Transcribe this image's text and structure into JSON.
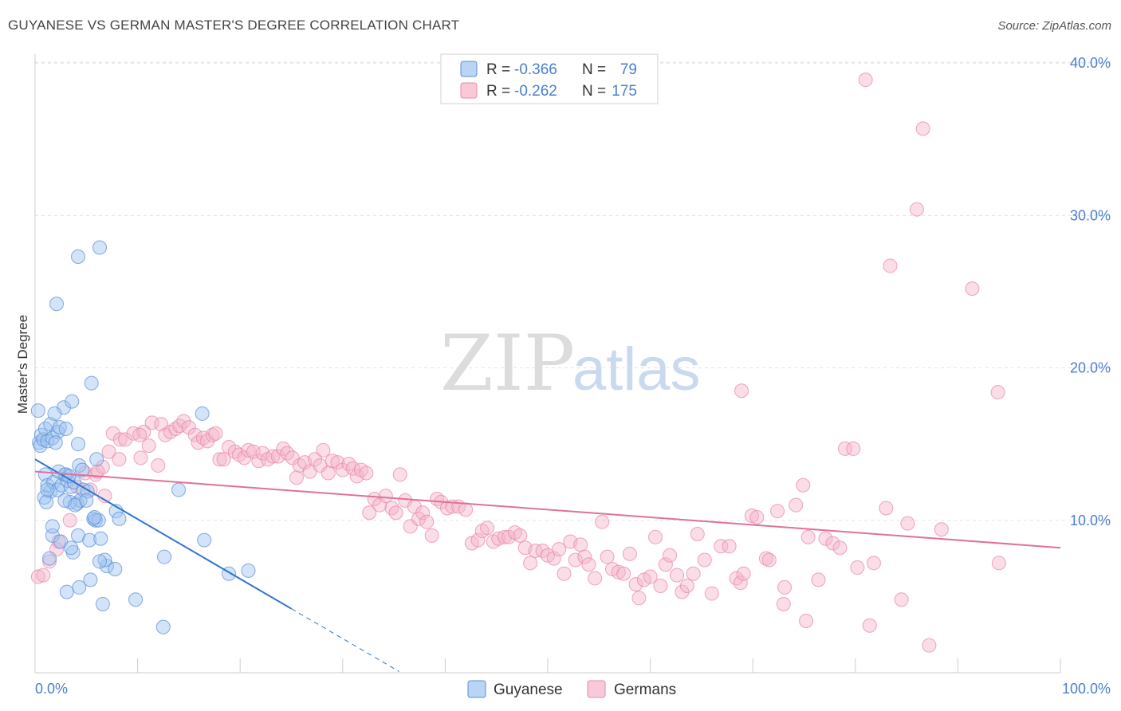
{
  "title": "GUYANESE VS GERMAN MASTER'S DEGREE CORRELATION CHART",
  "source": "Source: ZipAtlas.com",
  "watermark": {
    "zip": "ZIP",
    "atlas": "atlas"
  },
  "colors": {
    "blue_fill": "#9dc3f0",
    "blue_stroke": "#5b8fd8",
    "blue_line": "#2f73d0",
    "pink_fill": "#f5b3c8",
    "pink_stroke": "#e888a8",
    "pink_line": "#e0709a",
    "grid": "#e3e3e3",
    "tick_text": "#4a7fd0"
  },
  "legend": {
    "row1": {
      "r_label": "R = ",
      "r_value": "-0.366",
      "n_label": "N = ",
      "n_value": "79"
    },
    "row2": {
      "r_label": "R = ",
      "r_value": "-0.262",
      "n_label": "N = ",
      "n_value": "175"
    }
  },
  "chart_data": {
    "type": "scatter",
    "title": "GUYANESE VS GERMAN MASTER'S DEGREE CORRELATION CHART",
    "xlabel": "",
    "ylabel": "Master's Degree",
    "xlim": [
      0,
      100
    ],
    "ylim": [
      0,
      41
    ],
    "x_tick_labels": {
      "min": "0.0%",
      "max": "100.0%"
    },
    "y_ticks": [
      {
        "value": 10,
        "label": "10.0%"
      },
      {
        "value": 20,
        "label": "20.0%"
      },
      {
        "value": 30,
        "label": "30.0%"
      },
      {
        "value": 40,
        "label": "40.0%"
      }
    ],
    "series": [
      {
        "name": "Guyanese",
        "color": "#9dc3f0",
        "r": -0.366,
        "n": 79,
        "trend": {
          "x0": 0,
          "y0": 14.0,
          "x1": 25,
          "y1": 4.2,
          "dash_to_x": 35.5
        },
        "points": [
          [
            0.3,
            17.2
          ],
          [
            0.4,
            15.1
          ],
          [
            0.5,
            14.9
          ],
          [
            0.6,
            15.6
          ],
          [
            0.8,
            15.3
          ],
          [
            1.0,
            16.0
          ],
          [
            1.2,
            15.2
          ],
          [
            1.5,
            16.3
          ],
          [
            1.7,
            15.4
          ],
          [
            2.2,
            15.8
          ],
          [
            2.8,
            17.4
          ],
          [
            2.0,
            15.1
          ],
          [
            1.9,
            17.0
          ],
          [
            3.6,
            17.8
          ],
          [
            2.4,
            16.1
          ],
          [
            3.0,
            16.0
          ],
          [
            1.0,
            13.0
          ],
          [
            1.2,
            12.3
          ],
          [
            1.5,
            11.9
          ],
          [
            1.8,
            12.5
          ],
          [
            2.2,
            12.0
          ],
          [
            2.6,
            12.3
          ],
          [
            2.9,
            13.0
          ],
          [
            3.2,
            12.6
          ],
          [
            3.5,
            12.2
          ],
          [
            3.8,
            12.5
          ],
          [
            4.1,
            11.1
          ],
          [
            4.4,
            11.3
          ],
          [
            4.7,
            12.0
          ],
          [
            5.1,
            11.9
          ],
          [
            3.0,
            13.0
          ],
          [
            3.3,
            12.9
          ],
          [
            4.3,
            13.6
          ],
          [
            0.9,
            11.5
          ],
          [
            1.1,
            11.2
          ],
          [
            2.3,
            13.2
          ],
          [
            3.4,
            11.2
          ],
          [
            4.6,
            13.3
          ],
          [
            1.7,
            9.0
          ],
          [
            1.7,
            9.6
          ],
          [
            2.5,
            8.6
          ],
          [
            3.7,
            7.9
          ],
          [
            3.5,
            8.2
          ],
          [
            4.2,
            9.0
          ],
          [
            5.3,
            8.7
          ],
          [
            5.7,
            10.1
          ],
          [
            5.9,
            10.0
          ],
          [
            6.4,
            8.8
          ],
          [
            6.2,
            10.0
          ],
          [
            7.0,
            7.0
          ],
          [
            6.8,
            7.4
          ],
          [
            7.8,
            6.8
          ],
          [
            7.9,
            10.6
          ],
          [
            8.2,
            10.1
          ],
          [
            5.8,
            10.2
          ],
          [
            6.3,
            7.3
          ],
          [
            4.3,
            5.6
          ],
          [
            3.1,
            5.3
          ],
          [
            5.4,
            6.1
          ],
          [
            6.6,
            4.5
          ],
          [
            9.8,
            4.8
          ],
          [
            12.6,
            7.6
          ],
          [
            12.5,
            3.0
          ],
          [
            14.0,
            12.0
          ],
          [
            16.5,
            8.7
          ],
          [
            16.3,
            17.0
          ],
          [
            18.9,
            6.5
          ],
          [
            20.8,
            6.7
          ],
          [
            2.1,
            24.2
          ],
          [
            4.2,
            27.3
          ],
          [
            6.3,
            27.9
          ],
          [
            5.5,
            19.0
          ],
          [
            4.2,
            15.0
          ],
          [
            6.0,
            14.0
          ],
          [
            1.4,
            7.5
          ],
          [
            2.9,
            11.3
          ],
          [
            3.9,
            11.0
          ],
          [
            1.2,
            12.0
          ],
          [
            5.0,
            11.3
          ]
        ]
      },
      {
        "name": "Germans",
        "color": "#f5b3c8",
        "r": -0.262,
        "n": 175,
        "trend": {
          "x0": 0,
          "y0": 13.2,
          "x1": 100,
          "y1": 8.2
        },
        "points": [
          [
            0.3,
            6.3
          ],
          [
            0.8,
            6.4
          ],
          [
            1.4,
            7.3
          ],
          [
            2.1,
            8.1
          ],
          [
            2.3,
            8.6
          ],
          [
            3.4,
            10.0
          ],
          [
            4.1,
            12.2
          ],
          [
            4.9,
            13.1
          ],
          [
            5.4,
            12.0
          ],
          [
            5.9,
            13.0
          ],
          [
            6.6,
            13.5
          ],
          [
            6.1,
            13.2
          ],
          [
            7.2,
            14.5
          ],
          [
            7.6,
            15.7
          ],
          [
            8.3,
            15.3
          ],
          [
            8.8,
            15.3
          ],
          [
            9.6,
            15.7
          ],
          [
            10.3,
            14.1
          ],
          [
            10.6,
            15.8
          ],
          [
            11.1,
            14.9
          ],
          [
            11.4,
            16.4
          ],
          [
            12.3,
            16.3
          ],
          [
            12.7,
            15.6
          ],
          [
            13.2,
            15.8
          ],
          [
            13.7,
            16.0
          ],
          [
            14.1,
            16.2
          ],
          [
            14.5,
            16.5
          ],
          [
            15.0,
            16.1
          ],
          [
            15.6,
            15.6
          ],
          [
            15.9,
            15.1
          ],
          [
            16.4,
            15.4
          ],
          [
            16.8,
            15.2
          ],
          [
            17.3,
            15.6
          ],
          [
            17.6,
            15.7
          ],
          [
            18.0,
            14.0
          ],
          [
            18.4,
            14.0
          ],
          [
            18.9,
            14.8
          ],
          [
            19.5,
            14.5
          ],
          [
            19.9,
            14.3
          ],
          [
            20.4,
            14.1
          ],
          [
            20.8,
            14.6
          ],
          [
            21.3,
            14.5
          ],
          [
            21.8,
            13.9
          ],
          [
            22.2,
            14.4
          ],
          [
            22.7,
            14.0
          ],
          [
            23.2,
            14.2
          ],
          [
            23.7,
            14.2
          ],
          [
            24.2,
            14.7
          ],
          [
            24.6,
            14.4
          ],
          [
            25.1,
            14.1
          ],
          [
            25.5,
            12.8
          ],
          [
            25.8,
            13.6
          ],
          [
            26.3,
            13.8
          ],
          [
            26.8,
            13.2
          ],
          [
            27.3,
            14.0
          ],
          [
            27.8,
            13.6
          ],
          [
            28.1,
            14.6
          ],
          [
            28.6,
            13.1
          ],
          [
            29.0,
            13.9
          ],
          [
            29.5,
            13.8
          ],
          [
            30.0,
            13.3
          ],
          [
            30.6,
            13.7
          ],
          [
            31.0,
            13.4
          ],
          [
            31.4,
            12.9
          ],
          [
            31.8,
            13.3
          ],
          [
            32.3,
            13.1
          ],
          [
            32.6,
            10.5
          ],
          [
            33.1,
            11.4
          ],
          [
            33.6,
            11.0
          ],
          [
            34.2,
            11.6
          ],
          [
            34.8,
            10.8
          ],
          [
            35.2,
            10.5
          ],
          [
            35.6,
            13.0
          ],
          [
            36.1,
            11.3
          ],
          [
            36.6,
            9.6
          ],
          [
            37.0,
            10.9
          ],
          [
            37.4,
            10.1
          ],
          [
            37.8,
            10.5
          ],
          [
            38.2,
            9.9
          ],
          [
            38.7,
            9.0
          ],
          [
            39.2,
            11.4
          ],
          [
            39.6,
            11.2
          ],
          [
            40.2,
            10.8
          ],
          [
            40.7,
            10.9
          ],
          [
            41.3,
            10.9
          ],
          [
            42.0,
            10.7
          ],
          [
            42.6,
            8.5
          ],
          [
            43.2,
            8.7
          ],
          [
            43.6,
            9.3
          ],
          [
            44.1,
            9.5
          ],
          [
            44.7,
            8.6
          ],
          [
            45.2,
            8.8
          ],
          [
            45.8,
            8.9
          ],
          [
            46.2,
            8.9
          ],
          [
            46.8,
            9.2
          ],
          [
            47.3,
            9.0
          ],
          [
            47.8,
            8.2
          ],
          [
            48.3,
            7.2
          ],
          [
            48.8,
            8.0
          ],
          [
            49.5,
            8.0
          ],
          [
            50.0,
            7.7
          ],
          [
            50.6,
            7.5
          ],
          [
            51.1,
            8.1
          ],
          [
            51.6,
            6.5
          ],
          [
            52.2,
            8.6
          ],
          [
            52.7,
            7.4
          ],
          [
            53.2,
            8.4
          ],
          [
            53.6,
            7.6
          ],
          [
            54.0,
            7.1
          ],
          [
            54.6,
            6.2
          ],
          [
            55.3,
            9.9
          ],
          [
            55.8,
            7.6
          ],
          [
            56.3,
            6.8
          ],
          [
            56.9,
            6.6
          ],
          [
            57.4,
            6.5
          ],
          [
            58.0,
            7.8
          ],
          [
            58.6,
            5.8
          ],
          [
            58.9,
            4.9
          ],
          [
            59.4,
            6.1
          ],
          [
            60.0,
            6.3
          ],
          [
            60.5,
            8.9
          ],
          [
            61.0,
            5.7
          ],
          [
            61.5,
            7.1
          ],
          [
            61.9,
            7.7
          ],
          [
            62.6,
            6.4
          ],
          [
            63.1,
            5.3
          ],
          [
            63.6,
            5.7
          ],
          [
            64.2,
            6.5
          ],
          [
            64.6,
            9.1
          ],
          [
            65.3,
            7.4
          ],
          [
            66.0,
            5.2
          ],
          [
            66.9,
            8.3
          ],
          [
            67.7,
            8.3
          ],
          [
            68.4,
            6.2
          ],
          [
            68.8,
            5.9
          ],
          [
            69.1,
            6.5
          ],
          [
            69.9,
            10.3
          ],
          [
            70.4,
            10.2
          ],
          [
            71.3,
            7.5
          ],
          [
            71.6,
            7.4
          ],
          [
            72.4,
            10.6
          ],
          [
            73.0,
            4.5
          ],
          [
            73.1,
            5.6
          ],
          [
            74.2,
            11.0
          ],
          [
            74.9,
            12.3
          ],
          [
            75.2,
            3.4
          ],
          [
            75.4,
            8.9
          ],
          [
            76.4,
            6.1
          ],
          [
            77.1,
            8.8
          ],
          [
            77.8,
            8.5
          ],
          [
            78.5,
            8.2
          ],
          [
            79.0,
            14.7
          ],
          [
            79.8,
            14.7
          ],
          [
            80.2,
            6.9
          ],
          [
            81.0,
            38.9
          ],
          [
            81.4,
            3.1
          ],
          [
            81.8,
            7.2
          ],
          [
            83.0,
            10.8
          ],
          [
            83.4,
            26.7
          ],
          [
            84.5,
            4.8
          ],
          [
            85.1,
            9.8
          ],
          [
            86.0,
            30.4
          ],
          [
            86.6,
            35.7
          ],
          [
            87.2,
            1.8
          ],
          [
            88.4,
            9.4
          ],
          [
            91.4,
            25.2
          ],
          [
            93.9,
            18.4
          ],
          [
            94.0,
            7.2
          ],
          [
            68.9,
            18.5
          ],
          [
            8.2,
            14.0
          ],
          [
            10.2,
            15.6
          ],
          [
            12.0,
            13.6
          ],
          [
            6.8,
            11.6
          ]
        ]
      }
    ]
  },
  "bottom_legend": [
    {
      "name": "Guyanese"
    },
    {
      "name": "Germans"
    }
  ]
}
